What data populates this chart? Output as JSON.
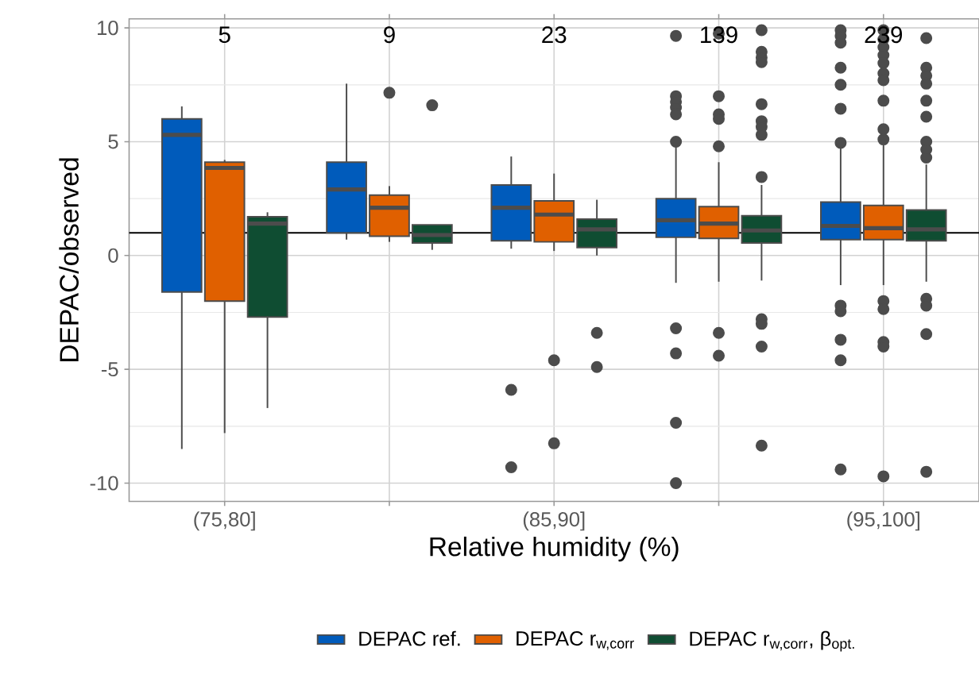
{
  "chart_data": {
    "type": "box",
    "xlabel": "Relative humidity (%)",
    "ylabel": "DEPAC/observed",
    "categories": [
      "(75,80]",
      null,
      "(85,90]",
      null,
      "(95,100]"
    ],
    "ylim": [
      -10.8,
      10.4
    ],
    "yticks": [
      -10,
      -5,
      0,
      5,
      10
    ],
    "grid": true,
    "legend": "bottom",
    "annotations": [
      "5",
      "9",
      "23",
      "139",
      "239"
    ],
    "ref_lines": [
      {
        "axis": "y",
        "value": 1,
        "color": "#000000"
      }
    ],
    "series": [
      {
        "name": "DEPAC ref.",
        "color": "#005bbb",
        "boxes": [
          {
            "low": -8.5,
            "q1": -1.6,
            "median": 5.3,
            "q3": 6.0,
            "high": 6.55
          },
          {
            "low": 0.7,
            "q1": 1.0,
            "median": 2.9,
            "q3": 4.1,
            "high": 7.55
          },
          {
            "low": 0.3,
            "q1": 0.65,
            "median": 2.1,
            "q3": 3.1,
            "high": 4.35,
            "outliers": [
              -5.9,
              -9.3
            ]
          },
          {
            "low": -1.2,
            "q1": 0.8,
            "median": 1.55,
            "q3": 2.5,
            "high": 4.9,
            "outliers": [
              9.65,
              7.0,
              6.75,
              6.5,
              6.2,
              5.0,
              -3.2,
              -4.3,
              -7.35,
              -10.0
            ]
          },
          {
            "low": -1.3,
            "q1": 0.7,
            "median": 1.3,
            "q3": 2.35,
            "high": 4.85,
            "outliers": [
              9.9,
              9.65,
              9.35,
              8.25,
              7.5,
              6.45,
              4.95,
              -2.2,
              -2.45,
              -3.7,
              -4.6,
              -9.4
            ]
          }
        ]
      },
      {
        "name": "DEPAC r$_{w,corr}$",
        "color": "#e06000",
        "boxes": [
          {
            "low": -7.8,
            "q1": -2.0,
            "median": 3.85,
            "q3": 4.1,
            "high": 4.2
          },
          {
            "low": 0.6,
            "q1": 0.85,
            "median": 2.1,
            "q3": 2.65,
            "high": 3.05,
            "outliers": [
              7.15
            ]
          },
          {
            "low": 0.2,
            "q1": 0.6,
            "median": 1.8,
            "q3": 2.4,
            "high": 3.6,
            "outliers": [
              -4.6,
              -8.25
            ]
          },
          {
            "low": -1.15,
            "q1": 0.75,
            "median": 1.4,
            "q3": 2.15,
            "high": 4.1,
            "outliers": [
              9.75,
              7.0,
              6.2,
              6.0,
              4.8,
              -3.4,
              -4.4
            ]
          },
          {
            "low": -1.3,
            "q1": 0.7,
            "median": 1.2,
            "q3": 2.2,
            "high": 4.85,
            "outliers": [
              9.9,
              9.5,
              9.15,
              8.8,
              8.45,
              8.0,
              7.7,
              6.8,
              5.55,
              5.1,
              -2.0,
              -2.35,
              -3.8,
              -4.0,
              -9.7
            ]
          }
        ]
      },
      {
        "name": "DEPAC r$_{w,corr}$, β$_{opt.}$",
        "color": "#0f4d32",
        "boxes": [
          {
            "low": -6.7,
            "q1": -2.7,
            "median": 1.4,
            "q3": 1.7,
            "high": 1.9
          },
          {
            "low": 0.25,
            "q1": 0.55,
            "median": 0.9,
            "q3": 1.35,
            "high": 1.35,
            "outliers": [
              6.6
            ]
          },
          {
            "low": 0.0,
            "q1": 0.35,
            "median": 1.15,
            "q3": 1.6,
            "high": 2.45,
            "outliers": [
              -3.4,
              -4.9
            ]
          },
          {
            "low": -1.1,
            "q1": 0.55,
            "median": 1.1,
            "q3": 1.75,
            "high": 3.1,
            "outliers": [
              9.9,
              8.95,
              8.7,
              8.5,
              6.65,
              5.9,
              5.65,
              5.3,
              3.45,
              -2.8,
              -3.0,
              -4.0,
              -8.35
            ]
          },
          {
            "low": -1.15,
            "q1": 0.65,
            "median": 1.15,
            "q3": 2.0,
            "high": 4.0,
            "outliers": [
              9.55,
              8.25,
              7.9,
              7.55,
              6.8,
              6.1,
              5.0,
              4.65,
              4.3,
              -1.9,
              -2.2,
              -3.45,
              -9.5
            ]
          }
        ]
      }
    ]
  }
}
